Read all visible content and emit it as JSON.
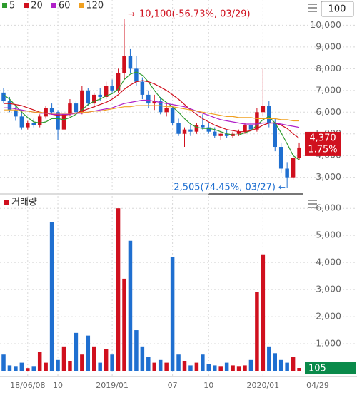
{
  "period_count": 100,
  "chart_data": [
    {
      "type": "candlestick",
      "categories": [
        null,
        null,
        null,
        null,
        "18/06/08",
        null,
        null,
        null,
        null,
        "10",
        null,
        null,
        null,
        null,
        null,
        null,
        null,
        null,
        "2019/01",
        null,
        null,
        null,
        null,
        null,
        null,
        null,
        null,
        null,
        "07",
        null,
        null,
        null,
        null,
        null,
        "10",
        null,
        null,
        null,
        null,
        null,
        null,
        null,
        null,
        "2020/01",
        null,
        null,
        null,
        null,
        null,
        "04/29"
      ],
      "open": [
        6900,
        6500,
        6100,
        5800,
        5300,
        5500,
        5400,
        5800,
        6200,
        6000,
        5200,
        5900,
        6400,
        6000,
        7000,
        6400,
        6800,
        6700,
        7200,
        7000,
        7800,
        8600,
        8000,
        7400,
        6800,
        6400,
        6500,
        6000,
        6200,
        5500,
        5000,
        5200,
        5100,
        5400,
        5300,
        5100,
        4900,
        5000,
        4900,
        5000,
        5100,
        5400,
        5200,
        6000,
        6300,
        5500,
        4400,
        3400,
        3000,
        3900
      ],
      "high": [
        7100,
        6700,
        6300,
        6100,
        5600,
        5700,
        5900,
        6300,
        6400,
        6100,
        6000,
        6600,
        6500,
        7200,
        7100,
        6900,
        7100,
        7400,
        7500,
        8000,
        10100,
        8900,
        8600,
        7600,
        7000,
        6800,
        6700,
        6400,
        6300,
        5700,
        5300,
        5400,
        5500,
        5900,
        5500,
        5300,
        5100,
        5200,
        5100,
        5200,
        5500,
        5600,
        6200,
        8000,
        6500,
        5700,
        4600,
        3700,
        4000,
        4600
      ],
      "low": [
        6400,
        6000,
        5600,
        5200,
        5200,
        5300,
        5300,
        5700,
        5900,
        4700,
        5100,
        5800,
        5900,
        5900,
        6300,
        6200,
        6500,
        6600,
        6900,
        6900,
        7500,
        7800,
        7200,
        6600,
        6200,
        6100,
        5900,
        5800,
        5400,
        4900,
        4400,
        4900,
        5000,
        5200,
        5000,
        4800,
        4700,
        4800,
        4800,
        4900,
        5000,
        5100,
        5100,
        5800,
        5300,
        4200,
        3200,
        2505,
        2900,
        3800
      ],
      "close": [
        6500,
        6100,
        5800,
        5300,
        5500,
        5400,
        5800,
        6200,
        6000,
        5200,
        5900,
        6400,
        6000,
        7000,
        6400,
        6800,
        6700,
        7200,
        7000,
        7800,
        8600,
        8000,
        7400,
        6800,
        6400,
        6500,
        6000,
        6200,
        5500,
        5000,
        5200,
        5100,
        5400,
        5300,
        5100,
        4900,
        5000,
        4900,
        5000,
        5100,
        5400,
        5200,
        6000,
        6300,
        5500,
        4400,
        3400,
        3000,
        3900,
        4370
      ],
      "up_color": "#d0101e",
      "down_color": "#1f6fd0",
      "series": [
        {
          "name": "5",
          "color": "#2e9b2e",
          "values": [
            6800,
            6600,
            6300,
            6000,
            5750,
            5550,
            5500,
            5550,
            5700,
            5700,
            5650,
            5750,
            5900,
            6100,
            6350,
            6500,
            6600,
            6750,
            6850,
            7050,
            7500,
            7750,
            7850,
            7700,
            7400,
            7000,
            6650,
            6450,
            6250,
            6000,
            5700,
            5450,
            5300,
            5250,
            5250,
            5200,
            5100,
            5000,
            4950,
            4950,
            5050,
            5150,
            5400,
            5650,
            5800,
            5500,
            5050,
            4550,
            4000,
            3800
          ]
        },
        {
          "name": "20",
          "color": "#d0101e",
          "values": [
            6400,
            6400,
            6350,
            6300,
            6200,
            6100,
            6000,
            5950,
            5900,
            5850,
            5850,
            5900,
            5950,
            6050,
            6150,
            6250,
            6350,
            6450,
            6600,
            6800,
            7050,
            7250,
            7400,
            7450,
            7400,
            7300,
            7150,
            7000,
            6800,
            6600,
            6350,
            6100,
            5900,
            5700,
            5550,
            5400,
            5300,
            5200,
            5150,
            5100,
            5100,
            5150,
            5250,
            5400,
            5500,
            5500,
            5400,
            5250,
            5000,
            4800
          ]
        },
        {
          "name": "60",
          "color": "#b020c8",
          "values": [
            6200,
            6200,
            6150,
            6100,
            6050,
            6000,
            5950,
            5950,
            5900,
            5900,
            5900,
            5900,
            5950,
            5950,
            6000,
            6050,
            6100,
            6150,
            6200,
            6300,
            6400,
            6450,
            6500,
            6550,
            6550,
            6500,
            6450,
            6400,
            6350,
            6300,
            6250,
            6150,
            6050,
            5950,
            5850,
            5750,
            5650,
            5600,
            5550,
            5500,
            5450,
            5450,
            5450,
            5500,
            5500,
            5500,
            5450,
            5400,
            5350,
            5300
          ]
        },
        {
          "name": "120",
          "color": "#f0a020",
          "values": [
            6100,
            6100,
            6100,
            6050,
            6050,
            6000,
            6000,
            5950,
            5950,
            5950,
            5950,
            5950,
            5950,
            6000,
            6000,
            6050,
            6050,
            6100,
            6150,
            6200,
            6250,
            6250,
            6300,
            6300,
            6300,
            6300,
            6300,
            6250,
            6250,
            6200,
            6150,
            6100,
            6050,
            6000,
            5950,
            5900,
            5850,
            5800,
            5800,
            5750,
            5750,
            5750,
            5700,
            5700,
            5700,
            5700,
            5650,
            5650,
            5600,
            5600
          ]
        }
      ],
      "ylim": [
        2300,
        10900
      ],
      "yticks": [
        {
          "value": 3000,
          "label": "3,000"
        },
        {
          "value": 4000,
          "label": "4,000"
        },
        {
          "value": 5000,
          "label": "5,000"
        },
        {
          "value": 6000,
          "label": "6,000"
        },
        {
          "value": 7000,
          "label": "7,000"
        },
        {
          "value": 8000,
          "label": "8,000"
        },
        {
          "value": 9000,
          "label": "9,000"
        },
        {
          "value": 10000,
          "label": "10,000"
        }
      ],
      "high_annotation": "10,100(-56.73%, 03/29)",
      "low_annotation": "2,505(74.45%, 03/27)",
      "current_price": {
        "value": 4370,
        "label": "4,370"
      },
      "change": "1.75%",
      "grid": true
    },
    {
      "type": "bar",
      "title": "거래량",
      "color": "#d0101e",
      "values": [
        600,
        200,
        150,
        300,
        100,
        150,
        700,
        300,
        5500,
        400,
        900,
        350,
        1400,
        600,
        1300,
        900,
        300,
        800,
        600,
        6000,
        3400,
        4800,
        1500,
        900,
        500,
        300,
        400,
        300,
        4200,
        600,
        350,
        200,
        300,
        600,
        250,
        200,
        150,
        300,
        200,
        150,
        200,
        400,
        2900,
        4300,
        900,
        650,
        400,
        300,
        500,
        105
      ],
      "value_color": "#0a8a4a",
      "ylim": [
        0,
        6400
      ],
      "yticks": [
        {
          "value": 1000,
          "label": "1,000"
        },
        {
          "value": 2000,
          "label": "2,000"
        },
        {
          "value": 3000,
          "label": "3,000"
        },
        {
          "value": 4000,
          "label": "4,000"
        },
        {
          "value": 5000,
          "label": "5,000"
        },
        {
          "value": 6000,
          "label": "6,000"
        }
      ],
      "grid": true
    }
  ]
}
